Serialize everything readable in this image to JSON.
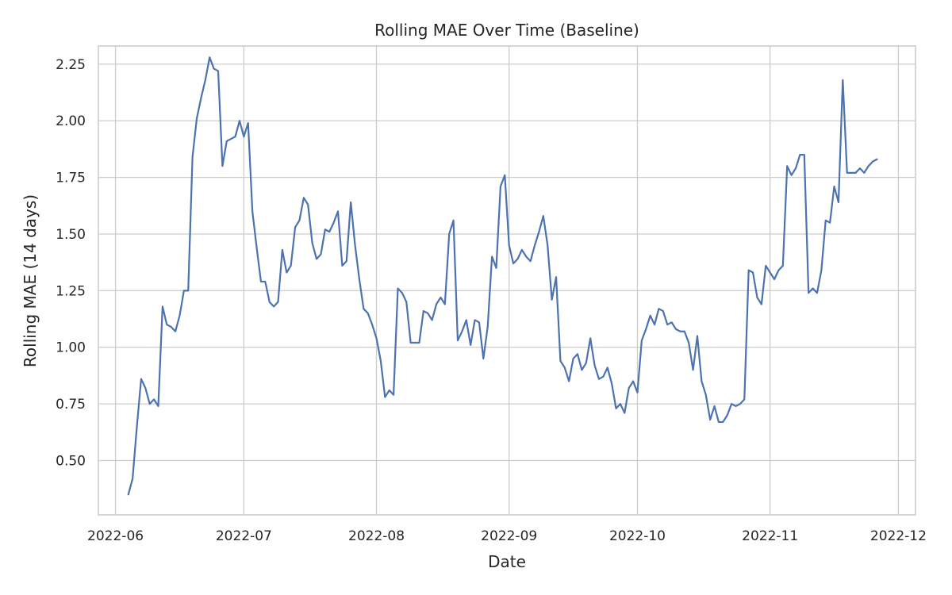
{
  "chart_data": {
    "type": "line",
    "title": "Rolling MAE Over Time (Baseline)",
    "xlabel": "Date",
    "ylabel": "Rolling MAE (14 days)",
    "xlim": [
      "2022-05-28",
      "2022-12-05"
    ],
    "ylim": [
      0.26,
      2.33
    ],
    "x_ticks": [
      "2022-06-01",
      "2022-07-01",
      "2022-08-01",
      "2022-09-01",
      "2022-10-01",
      "2022-11-01",
      "2022-12-01"
    ],
    "x_tick_labels": [
      "2022-06",
      "2022-07",
      "2022-08",
      "2022-09",
      "2022-10",
      "2022-11",
      "2022-12"
    ],
    "y_ticks": [
      0.5,
      0.75,
      1.0,
      1.25,
      1.5,
      1.75,
      2.0,
      2.25
    ],
    "y_tick_labels": [
      "0.50",
      "0.75",
      "1.00",
      "1.25",
      "1.50",
      "1.75",
      "2.00",
      "2.25"
    ],
    "grid": true,
    "line_color": "#4c72b0",
    "x_start": "2022-06-04",
    "series": [
      {
        "values": [
          0.35,
          0.42,
          0.65,
          0.86,
          0.82,
          0.75,
          0.77,
          0.74,
          1.18,
          1.1,
          1.09,
          1.07,
          1.14,
          1.25,
          1.25,
          1.84,
          2.01,
          2.1,
          2.18,
          2.28,
          2.23,
          2.22,
          1.8,
          1.91,
          1.92,
          1.93,
          2.0,
          1.93,
          1.99,
          1.6,
          1.44,
          1.29,
          1.29,
          1.2,
          1.18,
          1.2,
          1.43,
          1.33,
          1.36,
          1.53,
          1.56,
          1.66,
          1.63,
          1.46,
          1.39,
          1.41,
          1.52,
          1.51,
          1.55,
          1.6,
          1.36,
          1.38,
          1.64,
          1.45,
          1.3,
          1.17,
          1.15,
          1.1,
          1.04,
          0.94,
          0.78,
          0.81,
          0.79,
          1.26,
          1.24,
          1.2,
          1.02,
          1.02,
          1.02,
          1.16,
          1.15,
          1.12,
          1.19,
          1.22,
          1.19,
          1.5,
          1.56,
          1.03,
          1.07,
          1.12,
          1.01,
          1.12,
          1.11,
          0.95,
          1.09,
          1.4,
          1.35,
          1.71,
          1.76,
          1.45,
          1.37,
          1.39,
          1.43,
          1.4,
          1.38,
          1.45,
          1.51,
          1.58,
          1.45,
          1.21,
          1.31,
          0.94,
          0.91,
          0.85,
          0.95,
          0.97,
          0.9,
          0.93,
          1.04,
          0.92,
          0.86,
          0.87,
          0.91,
          0.84,
          0.73,
          0.75,
          0.71,
          0.82,
          0.85,
          0.8,
          1.03,
          1.08,
          1.14,
          1.1,
          1.17,
          1.16,
          1.1,
          1.11,
          1.08,
          1.07,
          1.07,
          1.02,
          0.9,
          1.05,
          0.85,
          0.79,
          0.68,
          0.74,
          0.67,
          0.67,
          0.7,
          0.75,
          0.74,
          0.75,
          0.77,
          1.34,
          1.33,
          1.22,
          1.19,
          1.36,
          1.33,
          1.3,
          1.34,
          1.36,
          1.8,
          1.76,
          1.79,
          1.85,
          1.85,
          1.24,
          1.26,
          1.24,
          1.34,
          1.56,
          1.55,
          1.71,
          1.64,
          2.18,
          1.77,
          1.77,
          1.77,
          1.79,
          1.77,
          1.8,
          1.82,
          1.83
        ]
      }
    ]
  }
}
